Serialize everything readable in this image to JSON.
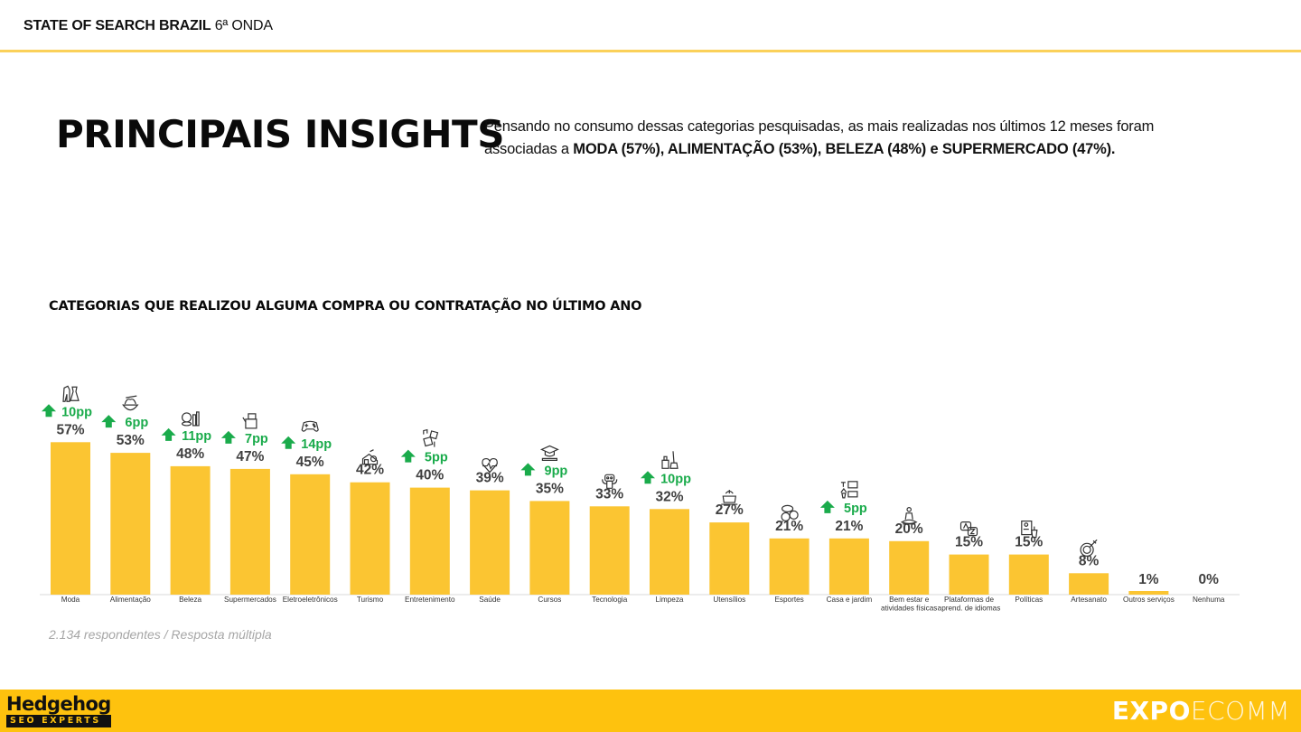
{
  "header": {
    "title_bold": "STATE OF SEARCH BRAZIL",
    "title_regular": "6ª ONDA"
  },
  "insights": {
    "title": "PRINCIPAIS INSIGHTS",
    "text_intro": "Pensando no consumo dessas categorias pesquisadas, as mais realizadas nos últimos 12 meses foram associadas a ",
    "text_bold": "MODA (57%), ALIMENTAÇÃO (53%), BELEZA (48%) e SUPERMERCADO (47%)."
  },
  "footnote": "2.134 respondentes / Resposta múltipla",
  "footer": {
    "left_logo_name": "Hedgehog",
    "left_logo_tag": "SEO EXPERTS",
    "right_logo_bold": "EXPO",
    "right_logo_light": "ECOMM"
  },
  "colors": {
    "bar": "#fbc532",
    "accent_rule": "#fbd15a",
    "footer": "#fec20e",
    "growth": "#1aab4b",
    "value_text": "#404040",
    "axis_label": "#333333"
  },
  "chart_data": {
    "type": "bar",
    "title": "CATEGORIAS QUE REALIZOU ALGUMA COMPRA OU CONTRATAÇÃO NO ÚLTIMO ANO",
    "xlabel": "",
    "ylabel": "",
    "ylim": [
      0,
      60
    ],
    "grid": false,
    "legend": "none",
    "value_suffix": "%",
    "categories": [
      "Moda",
      "Alimentação",
      "Beleza",
      "Supermercados",
      "Eletroeletrônicos",
      "Turismo",
      "Entretenimento",
      "Saúde",
      "Cursos",
      "Tecnologia",
      "Limpeza",
      "Utensílios",
      "Esportes",
      "Casa e jardim",
      "Bem estar e|atividades físicas",
      "Plataformas de|aprend. de idiomas",
      "Políticas",
      "Artesanato",
      "Outros serviços",
      "Nenhuma"
    ],
    "values": [
      57,
      53,
      48,
      47,
      45,
      42,
      40,
      39,
      35,
      33,
      32,
      27,
      21,
      21,
      20,
      15,
      15,
      8,
      1,
      0
    ],
    "value_labels": [
      "57%",
      "53%",
      "48%",
      "47%",
      "45%",
      "42%",
      "40%",
      "39%",
      "35%",
      "33%",
      "32%",
      "27%",
      "21%",
      "21%",
      "20%",
      "15%",
      "15%",
      "8%",
      "1%",
      "0%"
    ],
    "growth_labels": [
      "10pp",
      "6pp",
      "11pp",
      "7pp",
      "14pp",
      null,
      "5pp",
      null,
      "9pp",
      null,
      "10pp",
      null,
      null,
      "5pp",
      null,
      null,
      null,
      null,
      null,
      null
    ],
    "icons": [
      "clothing-icon",
      "noodle-bowl-icon",
      "cosmetics-icon",
      "grocery-icon",
      "gamepad-icon",
      "travel-icon",
      "entertainment-icon",
      "heartbeat-icon",
      "graduation-cap-icon",
      "robot-icon",
      "cleaning-icon",
      "cooking-pot-icon",
      "sports-balls-icon",
      "home-garden-icon",
      "meditation-icon",
      "language-icon",
      "politics-icon",
      "crafts-icon",
      null,
      null
    ]
  }
}
